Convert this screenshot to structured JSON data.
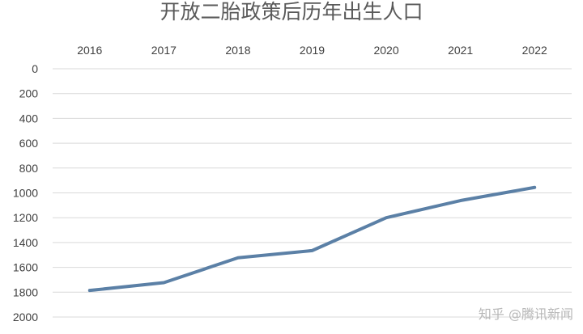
{
  "chart_data": {
    "type": "line",
    "title": "开放二胎政策后历年出生人口",
    "xlabel": "",
    "ylabel": "",
    "categories": [
      "2016",
      "2017",
      "2018",
      "2019",
      "2020",
      "2021",
      "2022"
    ],
    "series": [
      {
        "values": [
          1786,
          1723,
          1523,
          1465,
          1200,
          1062,
          956
        ]
      }
    ],
    "y_ticks": [
      "0",
      "200",
      "400",
      "600",
      "800",
      "1000",
      "1200",
      "1400",
      "1600",
      "1800",
      "2000"
    ],
    "ylim": [
      0,
      2000
    ],
    "y_axis_reversed": true,
    "x_axis_position": "top",
    "grid": true,
    "legend": "none",
    "colors": {
      "line": "#5b80a6",
      "grid": "#d9d9d9",
      "title": "#595959",
      "tick": "#404040"
    }
  },
  "watermark": "知乎 @腾讯新闻"
}
